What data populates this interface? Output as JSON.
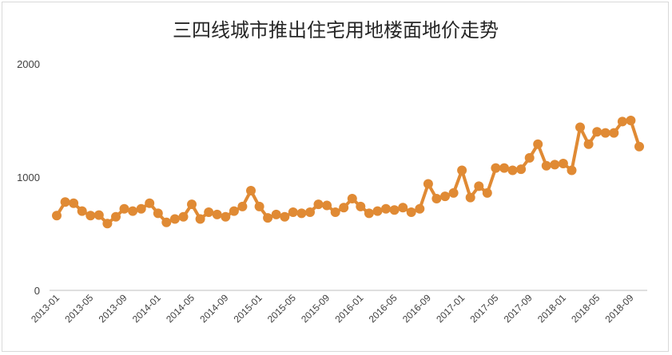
{
  "chart_data": {
    "type": "line",
    "title": "三四线城市推出住宅用地楼面地价走势",
    "xlabel": "",
    "ylabel": "",
    "ylim": [
      0,
      2000
    ],
    "yticks": [
      0,
      1000,
      2000
    ],
    "grid": false,
    "legend": "none",
    "line_color": "#e08a34",
    "x": [
      "2013-01",
      "2013-02",
      "2013-03",
      "2013-04",
      "2013-05",
      "2013-06",
      "2013-07",
      "2013-08",
      "2013-09",
      "2013-10",
      "2013-11",
      "2013-12",
      "2014-01",
      "2014-02",
      "2014-03",
      "2014-04",
      "2014-05",
      "2014-06",
      "2014-07",
      "2014-08",
      "2014-09",
      "2014-10",
      "2014-11",
      "2014-12",
      "2015-01",
      "2015-02",
      "2015-03",
      "2015-04",
      "2015-05",
      "2015-06",
      "2015-07",
      "2015-08",
      "2015-09",
      "2015-10",
      "2015-11",
      "2015-12",
      "2016-01",
      "2016-02",
      "2016-03",
      "2016-04",
      "2016-05",
      "2016-06",
      "2016-07",
      "2016-08",
      "2016-09",
      "2016-10",
      "2016-11",
      "2016-12",
      "2017-01",
      "2017-02",
      "2017-03",
      "2017-04",
      "2017-05",
      "2017-06",
      "2017-07",
      "2017-08",
      "2017-09",
      "2017-10",
      "2017-11",
      "2017-12",
      "2018-01",
      "2018-02",
      "2018-03",
      "2018-04",
      "2018-05",
      "2018-06",
      "2018-07",
      "2018-08",
      "2018-09",
      "2018-10"
    ],
    "xtick_labels": [
      "2013-01",
      "2013-05",
      "2013-09",
      "2014-01",
      "2014-05",
      "2014-09",
      "2015-01",
      "2015-05",
      "2015-09",
      "2016-01",
      "2016-05",
      "2016-09",
      "2017-01",
      "2017-05",
      "2017-09",
      "2018-01",
      "2018-05",
      "2018-09"
    ],
    "values": [
      660,
      780,
      770,
      700,
      660,
      665,
      590,
      650,
      720,
      700,
      720,
      770,
      680,
      600,
      630,
      650,
      760,
      630,
      690,
      670,
      650,
      700,
      740,
      880,
      740,
      640,
      670,
      650,
      690,
      680,
      690,
      760,
      750,
      690,
      730,
      810,
      740,
      680,
      700,
      720,
      710,
      730,
      690,
      720,
      940,
      810,
      830,
      860,
      1060,
      820,
      920,
      860,
      1080,
      1080,
      1060,
      1070,
      1170,
      1290,
      1100,
      1110,
      1120,
      1060,
      1440,
      1290,
      1400,
      1390,
      1390,
      1490,
      1500,
      1270
    ]
  }
}
